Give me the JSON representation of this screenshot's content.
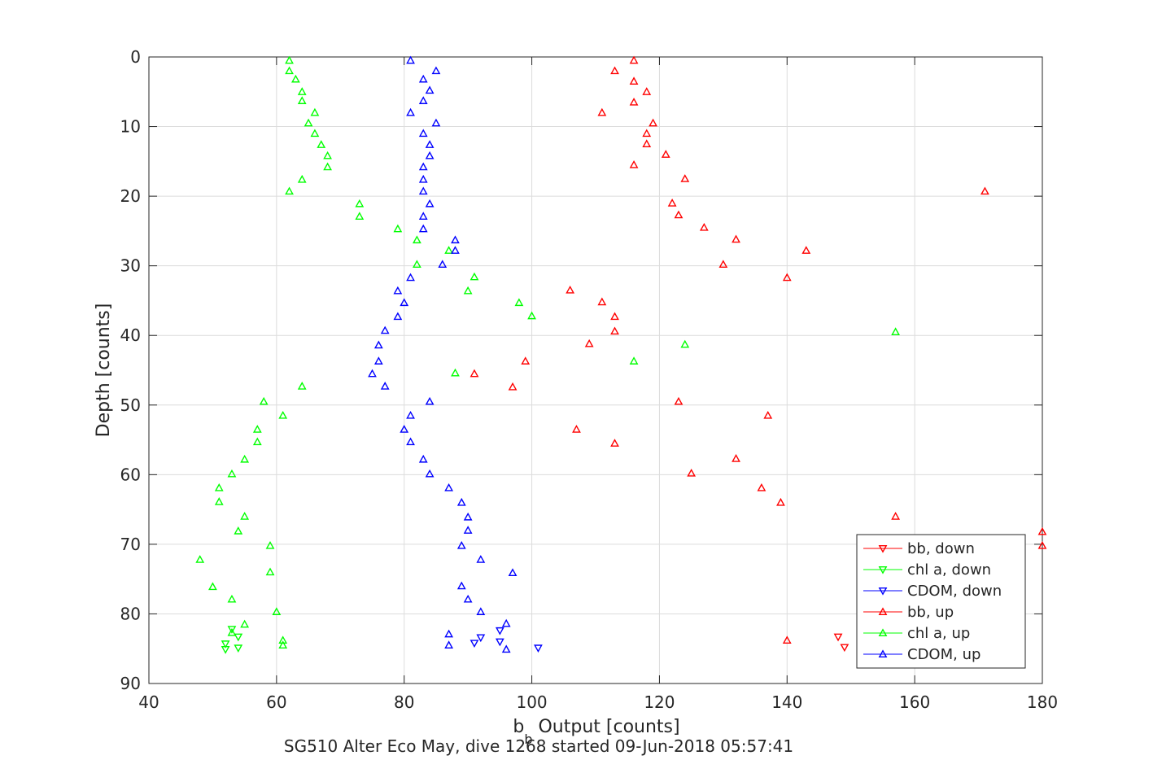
{
  "chart_data": {
    "type": "scatter",
    "title": "",
    "xlabel": {
      "main": "b",
      "subscript": "b",
      "rest": " Output [counts]"
    },
    "ylabel": "Depth [counts]",
    "footer": "SG510 Alter Eco May, dive 1268 started 09-Jun-2018 05:57:41",
    "xlim": [
      40,
      180
    ],
    "ylim": [
      0,
      90
    ],
    "y_reversed": true,
    "grid": true,
    "legend_position": "bottom-right",
    "x_ticks": [
      "40",
      "60",
      "80",
      "100",
      "120",
      "140",
      "160",
      "180"
    ],
    "y_ticks": [
      "0",
      "10",
      "20",
      "30",
      "40",
      "50",
      "60",
      "70",
      "80",
      "90"
    ],
    "series": [
      {
        "name": "bb, down",
        "color": "#ff0000",
        "marker": "triangle-down",
        "points": [
          [
            148,
            83.3
          ],
          [
            149,
            84.8
          ]
        ]
      },
      {
        "name": "chl a, down",
        "color": "#00ff00",
        "marker": "triangle-down",
        "points": [
          [
            53,
            82.2
          ],
          [
            54,
            83.3
          ],
          [
            52,
            84.3
          ],
          [
            54,
            84.9
          ],
          [
            52,
            85.1
          ]
        ]
      },
      {
        "name": "CDOM, down",
        "color": "#0000ff",
        "marker": "triangle-down",
        "points": [
          [
            95,
            82.4
          ],
          [
            92,
            83.4
          ],
          [
            91,
            84.2
          ],
          [
            95,
            84.0
          ],
          [
            101,
            84.9
          ]
        ]
      },
      {
        "name": "bb, up",
        "color": "#ff0000",
        "marker": "triangle-up",
        "points": [
          [
            116,
            0.5
          ],
          [
            113,
            2
          ],
          [
            116,
            3.5
          ],
          [
            118,
            5
          ],
          [
            116,
            6.5
          ],
          [
            111,
            8
          ],
          [
            119,
            9.5
          ],
          [
            118,
            11
          ],
          [
            118,
            12.5
          ],
          [
            121,
            14
          ],
          [
            116,
            15.5
          ],
          [
            124,
            17.5
          ],
          [
            171,
            19.3
          ],
          [
            122,
            21
          ],
          [
            123,
            22.7
          ],
          [
            127,
            24.5
          ],
          [
            132,
            26.2
          ],
          [
            143,
            27.8
          ],
          [
            130,
            29.8
          ],
          [
            140,
            31.7
          ],
          [
            106,
            33.5
          ],
          [
            111,
            35.2
          ],
          [
            113,
            37.3
          ],
          [
            113,
            39.4
          ],
          [
            109,
            41.2
          ],
          [
            99,
            43.7
          ],
          [
            91,
            45.5
          ],
          [
            97,
            47.4
          ],
          [
            123,
            49.5
          ],
          [
            137,
            51.5
          ],
          [
            107,
            53.5
          ],
          [
            113,
            55.5
          ],
          [
            132,
            57.7
          ],
          [
            125,
            59.8
          ],
          [
            136,
            61.9
          ],
          [
            139,
            64
          ],
          [
            157,
            66
          ],
          [
            180,
            68.2
          ],
          [
            180,
            70.2
          ],
          [
            140,
            83.8
          ]
        ]
      },
      {
        "name": "chl a, up",
        "color": "#00ff00",
        "marker": "triangle-up",
        "points": [
          [
            62,
            0.5
          ],
          [
            62,
            2
          ],
          [
            63,
            3.2
          ],
          [
            64,
            5
          ],
          [
            64,
            6.3
          ],
          [
            66,
            8
          ],
          [
            65,
            9.5
          ],
          [
            66,
            11
          ],
          [
            67,
            12.6
          ],
          [
            68,
            14.2
          ],
          [
            68,
            15.8
          ],
          [
            64,
            17.6
          ],
          [
            62,
            19.3
          ],
          [
            73,
            21.1
          ],
          [
            73,
            22.9
          ],
          [
            79,
            24.7
          ],
          [
            82,
            26.3
          ],
          [
            87,
            27.8
          ],
          [
            82,
            29.8
          ],
          [
            91,
            31.6
          ],
          [
            90,
            33.6
          ],
          [
            98,
            35.3
          ],
          [
            100,
            37.2
          ],
          [
            157,
            39.5
          ],
          [
            124,
            41.3
          ],
          [
            116,
            43.7
          ],
          [
            88,
            45.4
          ],
          [
            64,
            47.3
          ],
          [
            58,
            49.5
          ],
          [
            61,
            51.5
          ],
          [
            57,
            53.5
          ],
          [
            57,
            55.3
          ],
          [
            55,
            57.8
          ],
          [
            53,
            59.9
          ],
          [
            51,
            61.9
          ],
          [
            51,
            63.9
          ],
          [
            55,
            66
          ],
          [
            54,
            68.1
          ],
          [
            59,
            70.2
          ],
          [
            48,
            72.2
          ],
          [
            59,
            74
          ],
          [
            50,
            76.1
          ],
          [
            53,
            77.9
          ],
          [
            60,
            79.7
          ],
          [
            55,
            81.5
          ],
          [
            53,
            82.7
          ],
          [
            61,
            83.8
          ],
          [
            61,
            84.5
          ]
        ]
      },
      {
        "name": "CDOM, up",
        "color": "#0000ff",
        "marker": "triangle-up",
        "points": [
          [
            81,
            0.5
          ],
          [
            85,
            2
          ],
          [
            83,
            3.2
          ],
          [
            84,
            4.8
          ],
          [
            83,
            6.3
          ],
          [
            81,
            8
          ],
          [
            85,
            9.5
          ],
          [
            83,
            11
          ],
          [
            84,
            12.6
          ],
          [
            84,
            14.2
          ],
          [
            83,
            15.8
          ],
          [
            83,
            17.6
          ],
          [
            83,
            19.3
          ],
          [
            84,
            21.1
          ],
          [
            83,
            22.9
          ],
          [
            83,
            24.7
          ],
          [
            88,
            26.3
          ],
          [
            88,
            27.8
          ],
          [
            86,
            29.8
          ],
          [
            81,
            31.7
          ],
          [
            79,
            33.6
          ],
          [
            80,
            35.3
          ],
          [
            79,
            37.3
          ],
          [
            77,
            39.3
          ],
          [
            76,
            41.4
          ],
          [
            76,
            43.7
          ],
          [
            75,
            45.5
          ],
          [
            77,
            47.3
          ],
          [
            84,
            49.5
          ],
          [
            81,
            51.5
          ],
          [
            80,
            53.5
          ],
          [
            81,
            55.3
          ],
          [
            83,
            57.8
          ],
          [
            84,
            59.9
          ],
          [
            87,
            61.9
          ],
          [
            89,
            64
          ],
          [
            90,
            66.1
          ],
          [
            90,
            68
          ],
          [
            89,
            70.2
          ],
          [
            92,
            72.2
          ],
          [
            97,
            74.1
          ],
          [
            89,
            76
          ],
          [
            90,
            77.9
          ],
          [
            92,
            79.7
          ],
          [
            96,
            81.4
          ],
          [
            87,
            82.9
          ],
          [
            87,
            84.5
          ],
          [
            96,
            85.1
          ]
        ]
      }
    ]
  }
}
